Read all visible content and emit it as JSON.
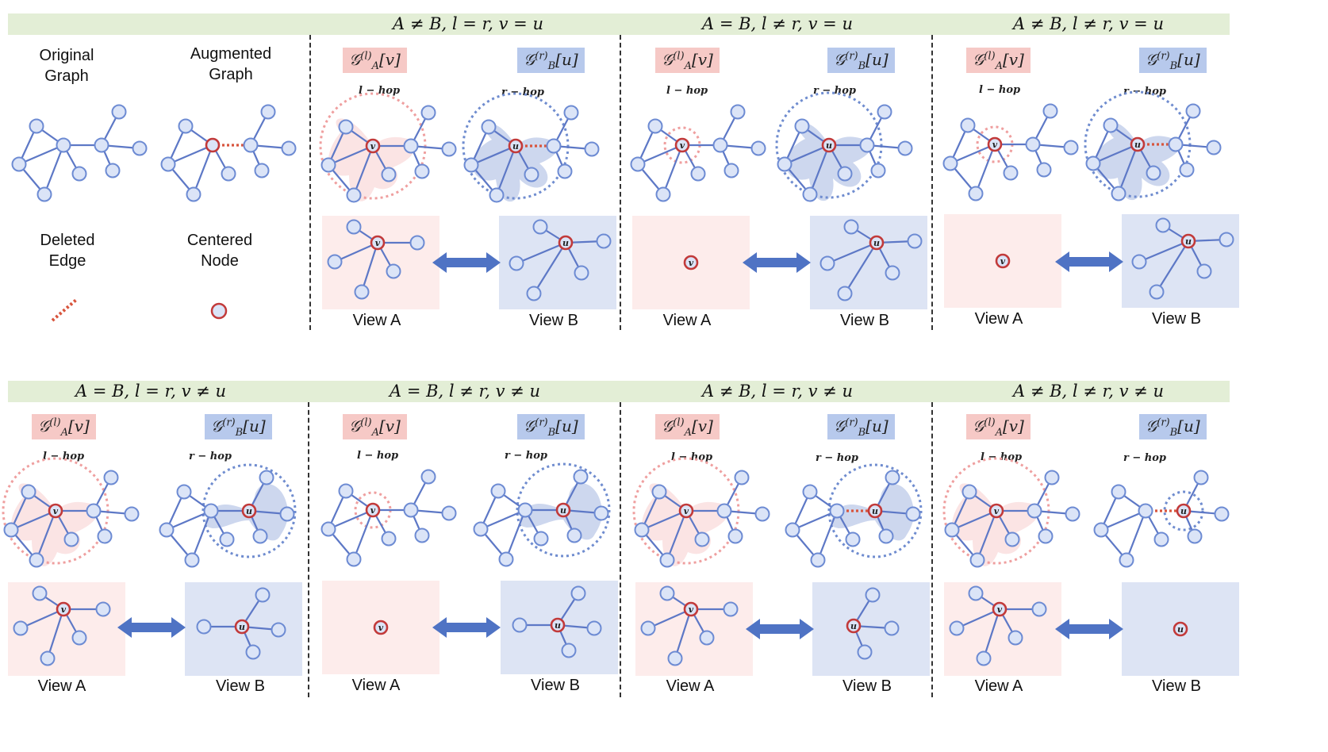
{
  "legend": {
    "original": "Original Graph",
    "augmented": "Augmented Graph",
    "deleted": "Deleted Edge",
    "centered": "Centered Node"
  },
  "views": {
    "a": "View A",
    "b": "View B"
  },
  "tags": {
    "a_base": "𝒢",
    "a_sup": "(l)",
    "a_sub": "A",
    "a_arg": "[v]",
    "b_base": "𝒢",
    "b_sup": "(r)",
    "b_sub": "B",
    "b_arg": "[u]"
  },
  "hops": {
    "l": "l − hop",
    "r": "r − hop"
  },
  "node_labels": {
    "v": "v",
    "u": "u"
  },
  "panels": [
    {
      "condition": "A ≠ B, l = r, v = u"
    },
    {
      "condition": "A = B, l ≠ r, v = u"
    },
    {
      "condition": "A ≠ B, l ≠ r, v = u"
    },
    {
      "condition": "A = B, l = r, v ≠ u"
    },
    {
      "condition": "A = B, l ≠ r, v ≠ u"
    },
    {
      "condition": "A ≠ B, l = r, v ≠ u"
    },
    {
      "condition": "A ≠ B, l ≠ r, v ≠ u"
    }
  ],
  "colors": {
    "banner": "#e3eed6",
    "node_fill": "#dbe4f7",
    "node_stroke": "#6d8bd3",
    "edge": "#5d78c6",
    "center": "#c23a3a",
    "deleted_edge": "#d8553d",
    "hop_red": "#ef9f9f",
    "hop_blue": "#6f8ccf",
    "arrow": "#4f73c4"
  }
}
